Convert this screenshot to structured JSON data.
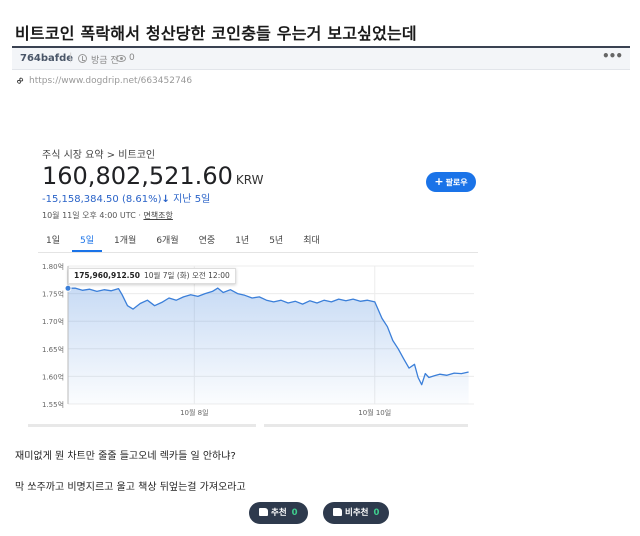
{
  "post": {
    "title": "비트코인 폭락해서 청산당한 코인충들 우는거 보고싶었는데",
    "author": "764bafde",
    "separator": "|",
    "time": "방금 전",
    "views": "0",
    "more_icon": "•••",
    "link": "https://www.dogdrip.net/663452746"
  },
  "finance": {
    "breadcrumb": "주식 시장 요약 > 비트코인",
    "price": "160,802,521.60",
    "currency": "KRW",
    "change": "-15,158,384.50 (8.61%)",
    "change_arrow": "↓",
    "change_period": "지난 5일",
    "follow_label": "팔로우",
    "timestamp": "10월 11일 오후 4:00 UTC · ",
    "disclaimer": "면책조항",
    "tabs": [
      "1일",
      "5일",
      "1개월",
      "6개월",
      "연중",
      "1년",
      "5년",
      "최대"
    ],
    "active_tab": "5일",
    "tooltip_price": "175,960,912.50",
    "tooltip_date": "10월 7일 (화) 오전 12:00"
  },
  "chart_data": {
    "type": "area",
    "title": "",
    "xlabel": "",
    "ylabel": "",
    "y_tick_labels": [
      "1.80억",
      "1.75억",
      "1.70억",
      "1.65억",
      "1.60억",
      "1.55억"
    ],
    "y_ticks": [
      1.8,
      1.75,
      1.7,
      1.65,
      1.6,
      1.55
    ],
    "ylim": [
      1.55,
      1.8
    ],
    "x_tick_labels": [
      "10월 8일",
      "10월 10일"
    ],
    "x_ticks": [
      1.4,
      3.4
    ],
    "xlim": [
      0,
      4.5
    ],
    "series": [
      {
        "color": "#3b7fd9",
        "x": [
          0.0,
          0.08,
          0.16,
          0.24,
          0.32,
          0.4,
          0.48,
          0.56,
          0.6,
          0.66,
          0.72,
          0.8,
          0.88,
          0.96,
          1.04,
          1.12,
          1.2,
          1.28,
          1.36,
          1.44,
          1.52,
          1.6,
          1.66,
          1.72,
          1.8,
          1.88,
          1.96,
          2.04,
          2.12,
          2.2,
          2.28,
          2.36,
          2.44,
          2.52,
          2.6,
          2.68,
          2.76,
          2.84,
          2.92,
          3.0,
          3.08,
          3.16,
          3.24,
          3.32,
          3.4,
          3.48,
          3.54,
          3.6,
          3.66,
          3.72,
          3.78,
          3.84,
          3.88,
          3.92,
          3.96,
          4.0,
          4.06,
          4.12,
          4.2,
          4.28,
          4.36,
          4.44
        ],
        "values": [
          1.7596,
          1.76,
          1.756,
          1.758,
          1.754,
          1.757,
          1.755,
          1.759,
          1.748,
          1.728,
          1.722,
          1.732,
          1.738,
          1.728,
          1.734,
          1.742,
          1.738,
          1.744,
          1.748,
          1.745,
          1.75,
          1.754,
          1.76,
          1.752,
          1.757,
          1.75,
          1.747,
          1.742,
          1.744,
          1.738,
          1.735,
          1.738,
          1.733,
          1.736,
          1.731,
          1.737,
          1.733,
          1.738,
          1.735,
          1.74,
          1.737,
          1.74,
          1.736,
          1.738,
          1.735,
          1.705,
          1.69,
          1.665,
          1.65,
          1.632,
          1.615,
          1.622,
          1.598,
          1.585,
          1.605,
          1.598,
          1.601,
          1.604,
          1.602,
          1.606,
          1.605,
          1.608
        ]
      }
    ]
  },
  "comments": {
    "line1": "재미없게 뭔 차트만 줄줄 들고오네 렉카들 일 안하냐?",
    "line2": "막 쏘주까고 비명지르고 울고 책상 뒤엎는걸 가져오라고"
  },
  "votes": {
    "up_label": "추천",
    "up_count": "0",
    "down_label": "비추천",
    "down_count": "0"
  }
}
